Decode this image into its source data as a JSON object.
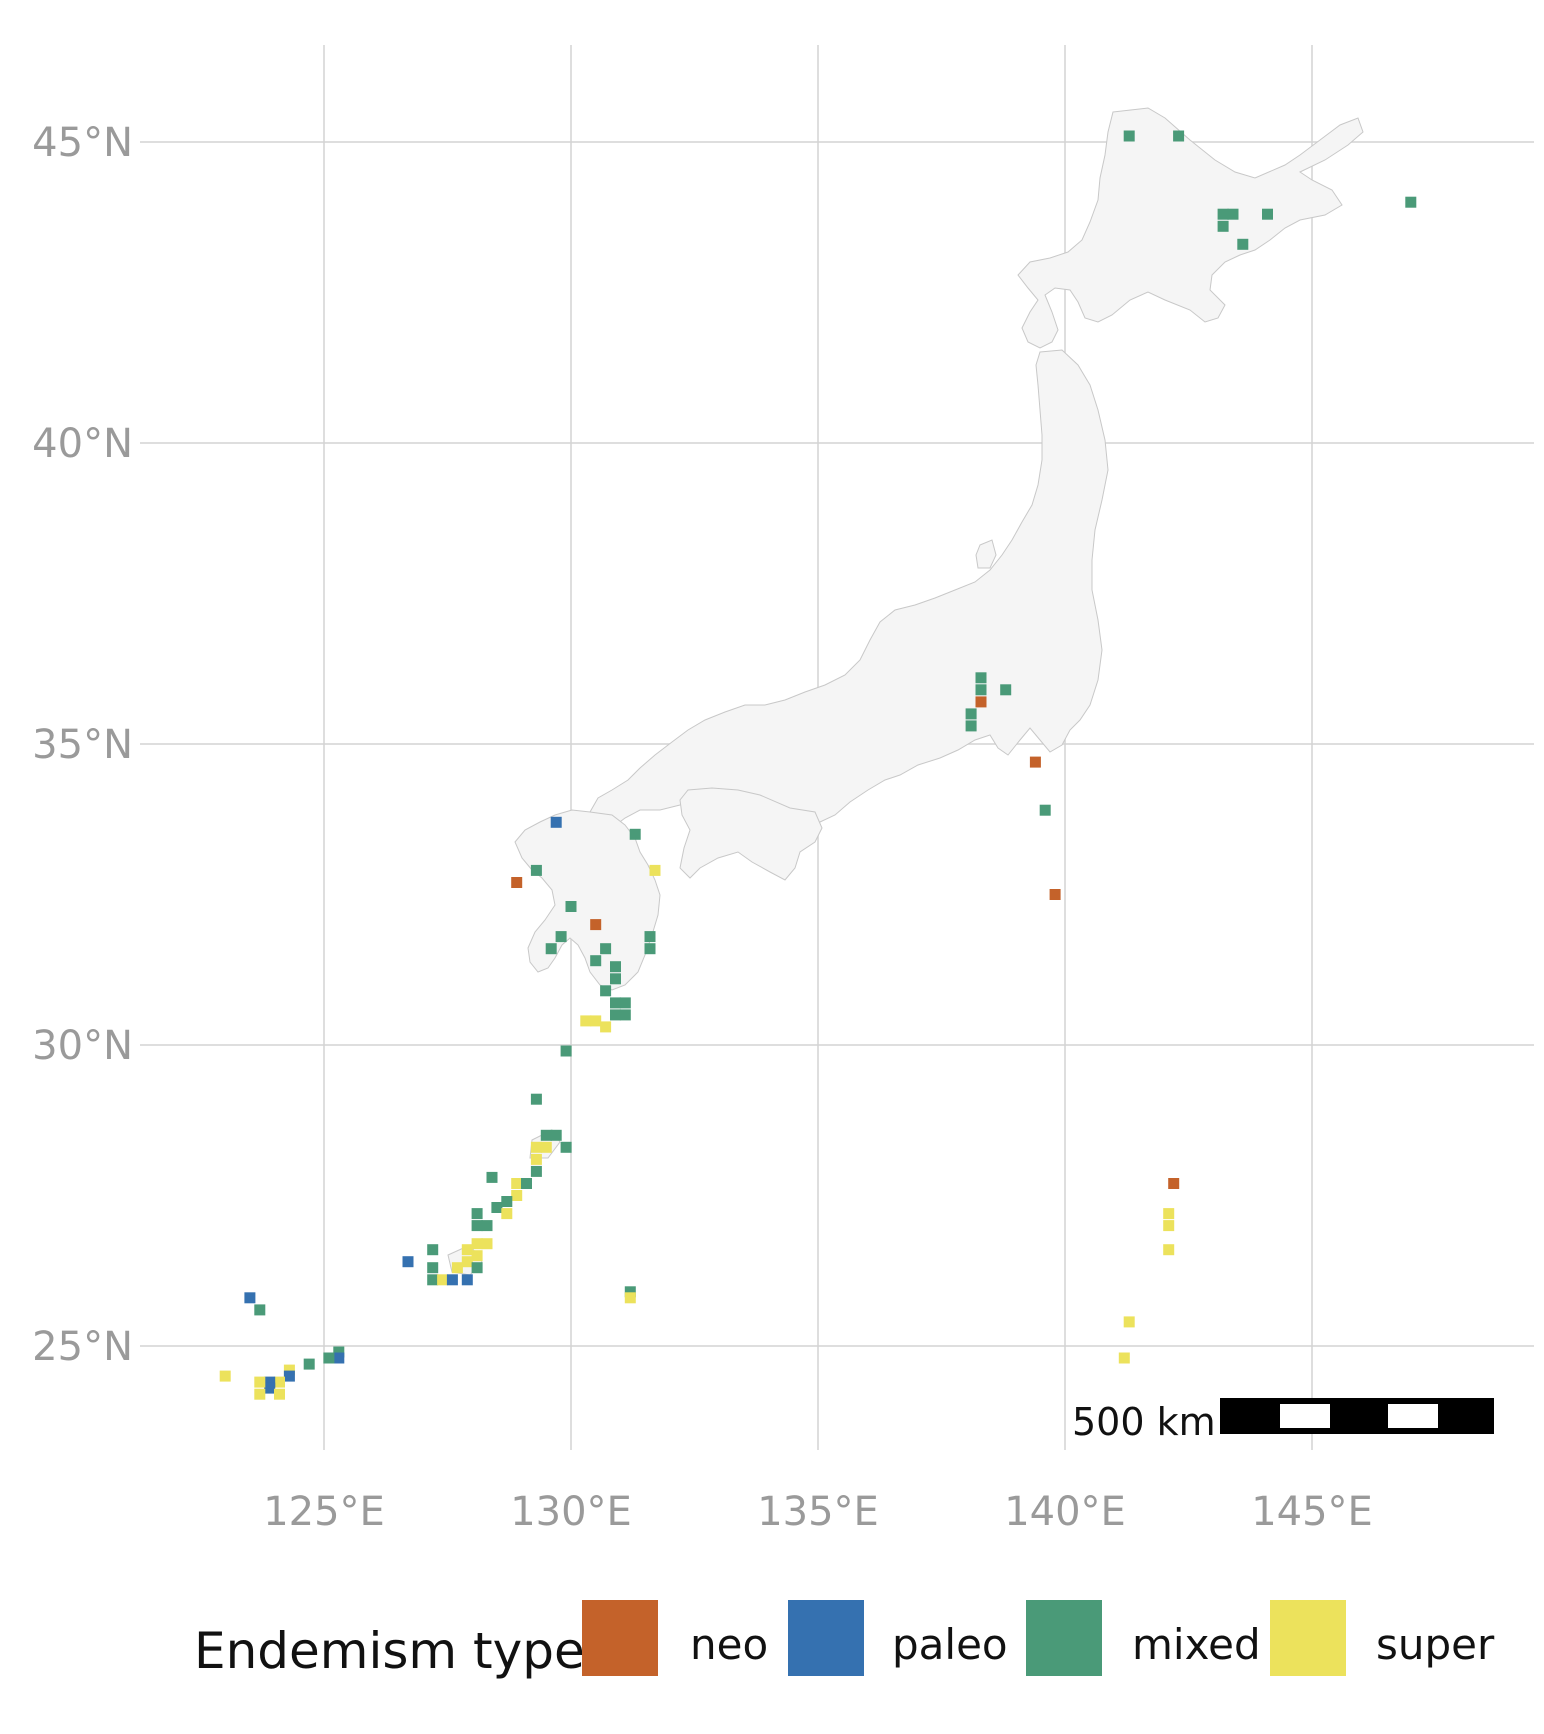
{
  "map": {
    "lat_ticks": [
      {
        "value": 45,
        "label": "45°N"
      },
      {
        "value": 40,
        "label": "40°N"
      },
      {
        "value": 35,
        "label": "35°N"
      },
      {
        "value": 30,
        "label": "30°N"
      },
      {
        "value": 25,
        "label": "25°N"
      }
    ],
    "lon_ticks": [
      {
        "value": 125,
        "label": "125°E"
      },
      {
        "value": 130,
        "label": "130°E"
      },
      {
        "value": 135,
        "label": "135°E"
      },
      {
        "value": 140,
        "label": "140°E"
      },
      {
        "value": 145,
        "label": "145°E"
      }
    ],
    "land_color": "#f5f5f5",
    "grid_color": "#d4d4d4",
    "scale_bar": {
      "label": "500 km"
    }
  },
  "legend": {
    "title": "Endemism type",
    "items": [
      {
        "key": "neo",
        "label": "neo",
        "color": "#c4622a"
      },
      {
        "key": "paleo",
        "label": "paleo",
        "color": "#3571b0"
      },
      {
        "key": "mixed",
        "label": "mixed",
        "color": "#4a9a78"
      },
      {
        "key": "super",
        "label": "super",
        "color": "#ece25c"
      }
    ]
  },
  "cells": [
    {
      "lon": 141.3,
      "lat": 45.1,
      "type": "mixed"
    },
    {
      "lon": 142.3,
      "lat": 45.1,
      "type": "mixed"
    },
    {
      "lon": 143.2,
      "lat": 43.8,
      "type": "mixed"
    },
    {
      "lon": 143.4,
      "lat": 43.8,
      "type": "mixed"
    },
    {
      "lon": 143.2,
      "lat": 43.6,
      "type": "mixed"
    },
    {
      "lon": 144.1,
      "lat": 43.8,
      "type": "mixed"
    },
    {
      "lon": 143.6,
      "lat": 43.3,
      "type": "mixed"
    },
    {
      "lon": 147.0,
      "lat": 44.0,
      "type": "mixed"
    },
    {
      "lon": 138.3,
      "lat": 36.1,
      "type": "mixed"
    },
    {
      "lon": 138.3,
      "lat": 35.9,
      "type": "mixed"
    },
    {
      "lon": 138.1,
      "lat": 35.5,
      "type": "mixed"
    },
    {
      "lon": 138.1,
      "lat": 35.3,
      "type": "mixed"
    },
    {
      "lon": 138.3,
      "lat": 35.7,
      "type": "neo"
    },
    {
      "lon": 138.8,
      "lat": 35.9,
      "type": "mixed"
    },
    {
      "lon": 139.4,
      "lat": 34.7,
      "type": "neo"
    },
    {
      "lon": 139.6,
      "lat": 33.9,
      "type": "mixed"
    },
    {
      "lon": 139.8,
      "lat": 32.5,
      "type": "neo"
    },
    {
      "lon": 129.7,
      "lat": 33.7,
      "type": "paleo"
    },
    {
      "lon": 131.3,
      "lat": 33.5,
      "type": "mixed"
    },
    {
      "lon": 131.7,
      "lat": 32.9,
      "type": "super"
    },
    {
      "lon": 128.9,
      "lat": 32.7,
      "type": "neo"
    },
    {
      "lon": 129.3,
      "lat": 32.9,
      "type": "mixed"
    },
    {
      "lon": 130.0,
      "lat": 32.3,
      "type": "mixed"
    },
    {
      "lon": 130.5,
      "lat": 32.0,
      "type": "neo"
    },
    {
      "lon": 129.8,
      "lat": 31.8,
      "type": "mixed"
    },
    {
      "lon": 129.6,
      "lat": 31.6,
      "type": "mixed"
    },
    {
      "lon": 130.5,
      "lat": 31.4,
      "type": "mixed"
    },
    {
      "lon": 130.7,
      "lat": 31.6,
      "type": "mixed"
    },
    {
      "lon": 131.6,
      "lat": 31.8,
      "type": "mixed"
    },
    {
      "lon": 131.6,
      "lat": 31.6,
      "type": "mixed"
    },
    {
      "lon": 130.9,
      "lat": 31.3,
      "type": "mixed"
    },
    {
      "lon": 130.9,
      "lat": 31.1,
      "type": "mixed"
    },
    {
      "lon": 130.7,
      "lat": 30.9,
      "type": "mixed"
    },
    {
      "lon": 130.9,
      "lat": 30.7,
      "type": "mixed"
    },
    {
      "lon": 131.1,
      "lat": 30.7,
      "type": "mixed"
    },
    {
      "lon": 130.9,
      "lat": 30.5,
      "type": "mixed"
    },
    {
      "lon": 131.1,
      "lat": 30.5,
      "type": "mixed"
    },
    {
      "lon": 130.3,
      "lat": 30.4,
      "type": "super"
    },
    {
      "lon": 130.5,
      "lat": 30.4,
      "type": "super"
    },
    {
      "lon": 130.7,
      "lat": 30.3,
      "type": "super"
    },
    {
      "lon": 129.9,
      "lat": 29.9,
      "type": "mixed"
    },
    {
      "lon": 129.3,
      "lat": 29.1,
      "type": "mixed"
    },
    {
      "lon": 129.5,
      "lat": 28.5,
      "type": "mixed"
    },
    {
      "lon": 129.7,
      "lat": 28.5,
      "type": "mixed"
    },
    {
      "lon": 129.9,
      "lat": 28.3,
      "type": "mixed"
    },
    {
      "lon": 129.5,
      "lat": 28.3,
      "type": "super"
    },
    {
      "lon": 129.3,
      "lat": 28.3,
      "type": "super"
    },
    {
      "lon": 129.3,
      "lat": 28.1,
      "type": "super"
    },
    {
      "lon": 129.3,
      "lat": 27.9,
      "type": "mixed"
    },
    {
      "lon": 128.4,
      "lat": 27.8,
      "type": "mixed"
    },
    {
      "lon": 128.9,
      "lat": 27.7,
      "type": "super"
    },
    {
      "lon": 129.1,
      "lat": 27.7,
      "type": "mixed"
    },
    {
      "lon": 128.9,
      "lat": 27.5,
      "type": "super"
    },
    {
      "lon": 128.7,
      "lat": 27.4,
      "type": "mixed"
    },
    {
      "lon": 128.5,
      "lat": 27.3,
      "type": "mixed"
    },
    {
      "lon": 128.7,
      "lat": 27.2,
      "type": "super"
    },
    {
      "lon": 128.3,
      "lat": 27.0,
      "type": "mixed"
    },
    {
      "lon": 128.1,
      "lat": 27.2,
      "type": "mixed"
    },
    {
      "lon": 128.1,
      "lat": 27.0,
      "type": "mixed"
    },
    {
      "lon": 128.3,
      "lat": 26.7,
      "type": "super"
    },
    {
      "lon": 128.1,
      "lat": 26.7,
      "type": "super"
    },
    {
      "lon": 127.9,
      "lat": 26.6,
      "type": "super"
    },
    {
      "lon": 128.1,
      "lat": 26.5,
      "type": "super"
    },
    {
      "lon": 127.9,
      "lat": 26.4,
      "type": "super"
    },
    {
      "lon": 127.7,
      "lat": 26.3,
      "type": "super"
    },
    {
      "lon": 128.1,
      "lat": 26.3,
      "type": "mixed"
    },
    {
      "lon": 127.2,
      "lat": 26.6,
      "type": "mixed"
    },
    {
      "lon": 127.2,
      "lat": 26.3,
      "type": "mixed"
    },
    {
      "lon": 127.2,
      "lat": 26.1,
      "type": "mixed"
    },
    {
      "lon": 127.4,
      "lat": 26.1,
      "type": "super"
    },
    {
      "lon": 127.6,
      "lat": 26.1,
      "type": "paleo"
    },
    {
      "lon": 127.9,
      "lat": 26.1,
      "type": "paleo"
    },
    {
      "lon": 126.7,
      "lat": 26.4,
      "type": "paleo"
    },
    {
      "lon": 131.2,
      "lat": 25.9,
      "type": "mixed"
    },
    {
      "lon": 131.2,
      "lat": 25.8,
      "type": "super"
    },
    {
      "lon": 123.5,
      "lat": 25.8,
      "type": "paleo"
    },
    {
      "lon": 123.7,
      "lat": 25.6,
      "type": "mixed"
    },
    {
      "lon": 125.3,
      "lat": 24.9,
      "type": "mixed"
    },
    {
      "lon": 125.3,
      "lat": 24.8,
      "type": "paleo"
    },
    {
      "lon": 125.1,
      "lat": 24.8,
      "type": "mixed"
    },
    {
      "lon": 124.7,
      "lat": 24.7,
      "type": "mixed"
    },
    {
      "lon": 124.3,
      "lat": 24.6,
      "type": "super"
    },
    {
      "lon": 124.3,
      "lat": 24.5,
      "type": "paleo"
    },
    {
      "lon": 124.1,
      "lat": 24.4,
      "type": "super"
    },
    {
      "lon": 123.9,
      "lat": 24.4,
      "type": "paleo"
    },
    {
      "lon": 123.9,
      "lat": 24.3,
      "type": "paleo"
    },
    {
      "lon": 123.7,
      "lat": 24.4,
      "type": "super"
    },
    {
      "lon": 123.7,
      "lat": 24.2,
      "type": "super"
    },
    {
      "lon": 124.1,
      "lat": 24.2,
      "type": "super"
    },
    {
      "lon": 123.0,
      "lat": 24.5,
      "type": "super"
    },
    {
      "lon": 142.2,
      "lat": 27.7,
      "type": "neo"
    },
    {
      "lon": 142.1,
      "lat": 27.2,
      "type": "super"
    },
    {
      "lon": 142.1,
      "lat": 27.0,
      "type": "super"
    },
    {
      "lon": 142.1,
      "lat": 26.6,
      "type": "super"
    },
    {
      "lon": 141.3,
      "lat": 25.4,
      "type": "super"
    },
    {
      "lon": 141.2,
      "lat": 24.8,
      "type": "super"
    }
  ]
}
